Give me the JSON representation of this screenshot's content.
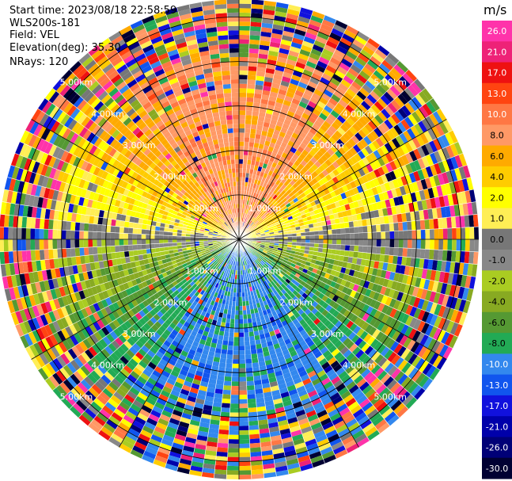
{
  "header": {
    "start_time": "Start time: 2023/08/18 22:58:59",
    "instrument": "WLS200s-181",
    "field": "Field: VEL",
    "elevation": "Elevation(deg): 35.30",
    "nrays": "NRays: 120"
  },
  "chart_data": {
    "type": "ppi",
    "title": "Start time: 2023/08/18 22:58:59",
    "instrument": "WLS200s-181",
    "field": "VEL",
    "elevation_deg": 35.3,
    "n_rays": 120,
    "range_rings_km": [
      1.0,
      2.0,
      3.0,
      4.0,
      5.0
    ],
    "ring_labels": [
      "1.00km",
      "2.00km",
      "3.00km",
      "4.00km",
      "5.00km"
    ],
    "max_range_km": 5.4,
    "colorbar": {
      "unit": "m/s",
      "bins": [
        {
          "label": "26.0",
          "color": "#ff33aa"
        },
        {
          "label": "21.0",
          "color": "#ee2277"
        },
        {
          "label": "17.0",
          "color": "#ee1111"
        },
        {
          "label": "13.0",
          "color": "#ff4411"
        },
        {
          "label": "10.0",
          "color": "#ff7744"
        },
        {
          "label": "8.0",
          "color": "#ff9966"
        },
        {
          "label": "6.0",
          "color": "#ffaa00"
        },
        {
          "label": "4.0",
          "color": "#ffcc00"
        },
        {
          "label": "2.0",
          "color": "#ffff00"
        },
        {
          "label": "1.0",
          "color": "#ffee55"
        },
        {
          "label": "0.0",
          "color": "#777777"
        },
        {
          "label": "-1.0",
          "color": "#888888"
        },
        {
          "label": "-2.0",
          "color": "#aacc22"
        },
        {
          "label": "-4.0",
          "color": "#88aa22"
        },
        {
          "label": "-6.0",
          "color": "#559933"
        },
        {
          "label": "-8.0",
          "color": "#22aa55"
        },
        {
          "label": "-10.0",
          "color": "#3388ee"
        },
        {
          "label": "-13.0",
          "color": "#1155ee"
        },
        {
          "label": "-17.0",
          "color": "#1111dd"
        },
        {
          "label": "-21.0",
          "color": "#0000aa"
        },
        {
          "label": "-26.0",
          "color": "#000077"
        },
        {
          "label": "-30.0",
          "color": "#000033"
        }
      ]
    }
  },
  "colors": {
    "grid": "#000000",
    "ray_separator": "#ffffff",
    "background": "#ffffff"
  }
}
